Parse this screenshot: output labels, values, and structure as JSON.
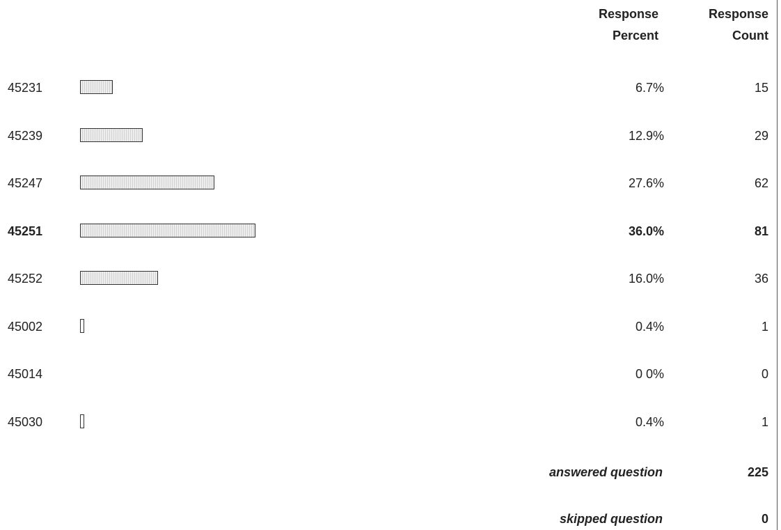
{
  "chart_data": {
    "type": "table",
    "columns": [
      "Response Percent",
      "Response Count"
    ],
    "categories": [
      "45231",
      "45239",
      "45247",
      "45251",
      "45252",
      "45002",
      "45014",
      "45030"
    ],
    "percent_labels": [
      "6.7%",
      "12.9%",
      "27.6%",
      "36.0%",
      "16.0%",
      "0.4%",
      "0 0%",
      "0.4%"
    ],
    "percents": [
      6.7,
      12.9,
      27.6,
      36.0,
      16.0,
      0.4,
      0.0,
      0.4
    ],
    "counts": [
      15,
      29,
      62,
      81,
      36,
      1,
      0,
      1
    ],
    "highlighted_row": "45251",
    "summary": {
      "answered_label": "answered question",
      "answered_value": "225",
      "skipped_label": "skipped question",
      "skipped_value": "0"
    }
  }
}
